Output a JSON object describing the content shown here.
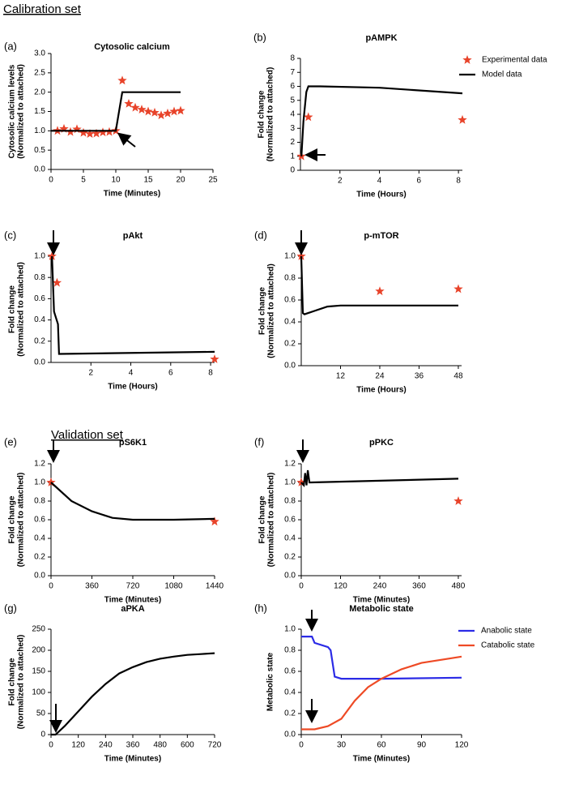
{
  "sections": [
    "Calibration set",
    "Validation set"
  ],
  "chart_data": [
    {
      "type": "line",
      "panel": "(a)",
      "title": "Cytosolic calcium",
      "xlabel": "Time (Minutes)",
      "ylabel": [
        "Cytosolic calcium levels",
        "(Normalized to attached)"
      ],
      "xlim": [
        0,
        25
      ],
      "xticks": [
        0,
        5,
        10,
        15,
        20,
        25
      ],
      "ylim": [
        0,
        3
      ],
      "yticks": [
        {
          "value": 0,
          "label": "0.0"
        },
        {
          "value": 0.5,
          "label": "0.5"
        },
        {
          "value": 1,
          "label": "1.0"
        },
        {
          "value": 1.5,
          "label": "1.5"
        },
        {
          "value": 2,
          "label": "2.0"
        },
        {
          "value": 2.5,
          "label": "2.5"
        },
        {
          "value": 3,
          "label": "3.0"
        }
      ],
      "grid": false,
      "series": [
        {
          "kind": "scatter",
          "color": "#e8432a",
          "x": [
            1,
            2,
            3,
            4,
            5,
            6,
            7,
            8,
            9,
            10,
            11,
            12,
            13,
            14,
            15,
            16,
            17,
            18,
            19,
            20
          ],
          "values": [
            1.0,
            1.05,
            0.97,
            1.04,
            0.95,
            0.92,
            0.93,
            0.96,
            0.97,
            1.0,
            2.3,
            1.7,
            1.6,
            1.55,
            1.5,
            1.47,
            1.4,
            1.45,
            1.5,
            1.52
          ]
        },
        {
          "kind": "line",
          "color": "#000000",
          "x": [
            0,
            10,
            11,
            20
          ],
          "values": [
            1,
            1,
            2,
            2
          ]
        }
      ]
    },
    {
      "type": "line",
      "panel": "(b)",
      "title": "pAMPK",
      "xlabel": "Time (Hours)",
      "ylabel": [
        "Fold change",
        "(Normalized to attached)"
      ],
      "xlim": [
        0,
        8.2
      ],
      "xticks": [
        2,
        4,
        6,
        8
      ],
      "ylim": [
        0,
        8
      ],
      "yticks": [
        0,
        1,
        2,
        3,
        4,
        5,
        6,
        7,
        8
      ],
      "grid": false,
      "legend": "outside-right",
      "series": [
        {
          "name": "Experimental data",
          "kind": "scatter",
          "color": "#e8432a",
          "x": [
            0.05,
            0.4,
            8.2
          ],
          "values": [
            1,
            3.8,
            3.6
          ]
        },
        {
          "name": "Model data",
          "kind": "line",
          "color": "#000000",
          "x": [
            0.05,
            0.15,
            0.3,
            0.4,
            1,
            4,
            8.2
          ],
          "values": [
            1,
            3.5,
            5.6,
            6.0,
            6.0,
            5.9,
            5.5
          ]
        }
      ]
    },
    {
      "type": "line",
      "panel": "(c)",
      "title": "pAkt",
      "xlabel": "Time (Hours)",
      "ylabel": [
        "Fold change",
        "(Normalized to attached)"
      ],
      "xlim": [
        0,
        8.2
      ],
      "xticks": [
        2,
        4,
        6,
        8
      ],
      "ylim": [
        0,
        1
      ],
      "yticks": [
        {
          "value": 0,
          "label": "0.0"
        },
        {
          "value": 0.2,
          "label": "0.2"
        },
        {
          "value": 0.4,
          "label": "0.4"
        },
        {
          "value": 0.6,
          "label": "0.6"
        },
        {
          "value": 0.8,
          "label": "0.8"
        },
        {
          "value": 1,
          "label": "1.0"
        }
      ],
      "grid": false,
      "series": [
        {
          "kind": "scatter",
          "color": "#e8432a",
          "x": [
            0.05,
            0.3,
            8.2
          ],
          "values": [
            1.0,
            0.75,
            0.03
          ]
        },
        {
          "kind": "line",
          "color": "#000000",
          "x": [
            0.05,
            0.15,
            0.2,
            0.35,
            0.4,
            0.45,
            8.2
          ],
          "values": [
            1.0,
            0.48,
            0.45,
            0.36,
            0.08,
            0.08,
            0.1
          ]
        }
      ]
    },
    {
      "type": "line",
      "panel": "(d)",
      "title": "p-mTOR",
      "xlabel": "Time (Hours)",
      "ylabel": [
        "Fold change",
        "(Normalized to attached)"
      ],
      "xlim": [
        0,
        49
      ],
      "xticks": [
        12,
        24,
        36,
        48
      ],
      "ylim": [
        0,
        1
      ],
      "yticks": [
        {
          "value": 0,
          "label": "0.0"
        },
        {
          "value": 0.2,
          "label": "0.2"
        },
        {
          "value": 0.4,
          "label": "0.4"
        },
        {
          "value": 0.6,
          "label": "0.6"
        },
        {
          "value": 0.8,
          "label": "0.8"
        },
        {
          "value": 1,
          "label": "1.0"
        }
      ],
      "grid": false,
      "series": [
        {
          "kind": "scatter",
          "color": "#e8432a",
          "x": [
            0,
            24,
            48
          ],
          "values": [
            1.0,
            0.68,
            0.7
          ]
        },
        {
          "kind": "line",
          "color": "#000000",
          "x": [
            0,
            0.5,
            1,
            4,
            8,
            12,
            48
          ],
          "values": [
            1,
            0.48,
            0.47,
            0.5,
            0.54,
            0.55,
            0.55
          ]
        }
      ]
    },
    {
      "type": "line",
      "panel": "(e)",
      "title": "pS6K1",
      "xlabel": "Time (Minutes)",
      "ylabel": [
        "Fold change",
        "(Normalized to attached)"
      ],
      "xlim": [
        0,
        1440
      ],
      "xticks": [
        0,
        360,
        720,
        1080,
        1440
      ],
      "ylim": [
        0,
        1.2
      ],
      "yticks": [
        {
          "value": 0,
          "label": "0.0"
        },
        {
          "value": 0.2,
          "label": "0.2"
        },
        {
          "value": 0.4,
          "label": "0.4"
        },
        {
          "value": 0.6,
          "label": "0.6"
        },
        {
          "value": 0.8,
          "label": "0.8"
        },
        {
          "value": 1,
          "label": "1.0"
        },
        {
          "value": 1.2,
          "label": "1.2"
        }
      ],
      "grid": false,
      "series": [
        {
          "kind": "scatter",
          "color": "#e8432a",
          "x": [
            0,
            1440
          ],
          "values": [
            1.0,
            0.58
          ]
        },
        {
          "kind": "line",
          "color": "#000000",
          "x": [
            0,
            180,
            360,
            540,
            720,
            1080,
            1440
          ],
          "values": [
            1.0,
            0.8,
            0.69,
            0.62,
            0.6,
            0.6,
            0.61
          ]
        }
      ]
    },
    {
      "type": "line",
      "panel": "(f)",
      "title": "pPKC",
      "xlabel": "Time (Minutes)",
      "ylabel": [
        "Fold change",
        "(Normalized to attached)"
      ],
      "xlim": [
        0,
        490
      ],
      "xticks": [
        0,
        120,
        240,
        360,
        480
      ],
      "ylim": [
        0,
        1.2
      ],
      "yticks": [
        {
          "value": 0,
          "label": "0.0"
        },
        {
          "value": 0.2,
          "label": "0.2"
        },
        {
          "value": 0.4,
          "label": "0.4"
        },
        {
          "value": 0.6,
          "label": "0.6"
        },
        {
          "value": 0.8,
          "label": "0.8"
        },
        {
          "value": 1,
          "label": "1.0"
        },
        {
          "value": 1.2,
          "label": "1.2"
        }
      ],
      "grid": false,
      "series": [
        {
          "kind": "scatter",
          "color": "#e8432a",
          "x": [
            0,
            480
          ],
          "values": [
            1.0,
            0.8
          ]
        },
        {
          "kind": "line",
          "color": "#000000",
          "x": [
            0,
            8,
            12,
            16,
            20,
            25,
            30,
            480
          ],
          "values": [
            1.0,
            0.97,
            1.1,
            0.97,
            1.13,
            1.0,
            1.0,
            1.04
          ]
        }
      ]
    },
    {
      "type": "line",
      "panel": "(g)",
      "title": "aPKA",
      "xlabel": "Time (Minutes)",
      "ylabel": [
        "Fold change",
        "(Normalized to attached)"
      ],
      "xlim": [
        0,
        720
      ],
      "xticks": [
        0,
        120,
        240,
        360,
        480,
        600,
        720
      ],
      "ylim": [
        0,
        250
      ],
      "yticks": [
        0,
        50,
        100,
        150,
        200,
        250
      ],
      "grid": false,
      "series": [
        {
          "kind": "line",
          "color": "#000000",
          "x": [
            0,
            20,
            30,
            60,
            120,
            180,
            240,
            300,
            360,
            420,
            480,
            540,
            600,
            660,
            720
          ],
          "values": [
            0,
            0,
            5,
            20,
            55,
            90,
            120,
            145,
            160,
            172,
            180,
            185,
            189,
            191,
            193
          ]
        }
      ]
    },
    {
      "type": "line",
      "panel": "(h)",
      "title": "Metabolic state",
      "xlabel": "Time (Minutes)",
      "ylabel": [
        "Metabolic state"
      ],
      "xlim": [
        0,
        120
      ],
      "xticks": [
        0,
        30,
        60,
        90,
        120
      ],
      "ylim": [
        0,
        1
      ],
      "yticks": [
        {
          "value": 0,
          "label": "0.0"
        },
        {
          "value": 0.2,
          "label": "0.2"
        },
        {
          "value": 0.4,
          "label": "0.4"
        },
        {
          "value": 0.6,
          "label": "0.6"
        },
        {
          "value": 0.8,
          "label": "0.8"
        },
        {
          "value": 1,
          "label": "1.0"
        }
      ],
      "grid": false,
      "legend": "outside-right",
      "series": [
        {
          "name": "Anabolic state",
          "kind": "line",
          "color": "#2b2be6",
          "x": [
            0,
            5,
            8,
            10,
            20,
            22,
            25,
            30,
            60,
            120
          ],
          "values": [
            0.93,
            0.93,
            0.93,
            0.87,
            0.83,
            0.8,
            0.55,
            0.53,
            0.53,
            0.54
          ]
        },
        {
          "name": "Catabolic state",
          "kind": "line",
          "color": "#ee4a25",
          "x": [
            0,
            10,
            20,
            30,
            40,
            50,
            60,
            75,
            90,
            105,
            120
          ],
          "values": [
            0.05,
            0.05,
            0.08,
            0.15,
            0.32,
            0.45,
            0.53,
            0.62,
            0.68,
            0.71,
            0.74
          ]
        }
      ]
    }
  ]
}
